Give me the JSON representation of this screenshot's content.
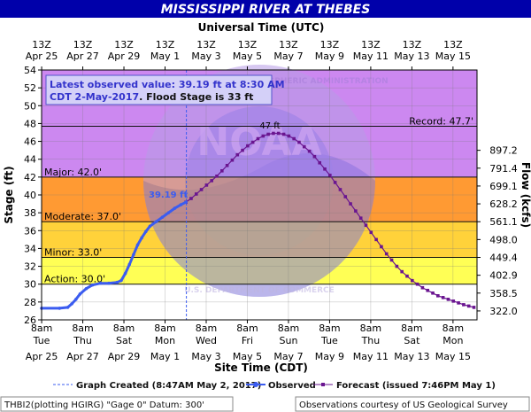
{
  "header": {
    "title": "MISSISSIPPI RIVER AT THEBES",
    "top_axis_title": "Universal Time (UTC)",
    "bottom_axis_title": "Site Time (CDT)",
    "y_left_title": "Stage (ft)",
    "y_right_title": "Flow (kcfs)"
  },
  "colors": {
    "title_bg": "#0000aa",
    "major": "#f55a5a",
    "record": "#cc88f0",
    "moderate": "#ff9a33",
    "minor": "#ffd23a",
    "action": "#ffff55",
    "normal": "#ffffff",
    "observed": "#3b5cf0",
    "forecast": "#6a1590",
    "label_box_bg": "#d4d0f8",
    "label_box_border": "#5555cc"
  },
  "info_box": {
    "line1": "Latest observed value: 39.19 ft at 8:30 AM",
    "line2a": "CDT 2-May-2017",
    "line2b": ". Flood Stage is 33 ft"
  },
  "thresholds": {
    "record": {
      "label": "Record: 47.7'",
      "value": 47.7
    },
    "major": {
      "label": "Major: 42.0'",
      "value": 42.0
    },
    "moderate": {
      "label": "Moderate: 37.0'",
      "value": 37.0
    },
    "minor": {
      "label": "Minor: 33.0'",
      "value": 33.0
    },
    "action": {
      "label": "Action: 30.0'",
      "value": 30.0
    }
  },
  "annotations": {
    "observed_label": "39.19 ft",
    "crest_label": "47 ft"
  },
  "legend": {
    "graph_created": "Graph Created (8:47AM May 2, 2017)",
    "observed": "Observed",
    "forecast": "Forecast (issued 7:46PM May 1)"
  },
  "footer": {
    "left": "THBI2(plotting HGIRG) \"Gage 0\" Datum: 300'",
    "right": "Observations courtesy of US Geological Survey"
  },
  "watermark": {
    "text_top": "NATIONAL OCEANIC AND ATMOSPHERIC ADMINISTRATION",
    "text_bottom": "U.S. DEPARTMENT OF COMMERCE",
    "logo": "NOAA"
  },
  "chart_data": {
    "type": "line",
    "x_unit": "days since Apr 25 2017 00:00 CDT",
    "xlim": [
      0.33,
      21.5
    ],
    "ylim": [
      26,
      54
    ],
    "y_ticks": [
      26,
      28,
      30,
      32,
      34,
      36,
      38,
      40,
      42,
      44,
      46,
      48,
      50,
      52,
      54
    ],
    "flow_ticks": [
      {
        "stage": 27,
        "label": "322.0"
      },
      {
        "stage": 29,
        "label": "358.5"
      },
      {
        "stage": 31,
        "label": "402.9"
      },
      {
        "stage": 33,
        "label": "449.4"
      },
      {
        "stage": 35,
        "label": "498.0"
      },
      {
        "stage": 37,
        "label": "561.1"
      },
      {
        "stage": 39,
        "label": "628.2"
      },
      {
        "stage": 41,
        "label": "699.1"
      },
      {
        "stage": 43,
        "label": "791.4"
      },
      {
        "stage": 45,
        "label": "897.2"
      }
    ],
    "top_ticks": [
      {
        "day": 0.333,
        "line1": "13Z",
        "line2": "Apr 25"
      },
      {
        "day": 2.333,
        "line1": "13Z",
        "line2": "Apr 27"
      },
      {
        "day": 4.333,
        "line1": "13Z",
        "line2": "Apr 29"
      },
      {
        "day": 6.333,
        "line1": "13Z",
        "line2": "May 1"
      },
      {
        "day": 8.333,
        "line1": "13Z",
        "line2": "May 3"
      },
      {
        "day": 10.333,
        "line1": "13Z",
        "line2": "May 5"
      },
      {
        "day": 12.333,
        "line1": "13Z",
        "line2": "May 7"
      },
      {
        "day": 14.333,
        "line1": "13Z",
        "line2": "May 9"
      },
      {
        "day": 16.333,
        "line1": "13Z",
        "line2": "May 11"
      },
      {
        "day": 18.333,
        "line1": "13Z",
        "line2": "May 13"
      },
      {
        "day": 20.333,
        "line1": "13Z",
        "line2": "May 15"
      }
    ],
    "bottom_ticks": [
      {
        "day": 0.333,
        "line1": "8am",
        "line2": "Tue"
      },
      {
        "day": 2.333,
        "line1": "8am",
        "line2": "Thu"
      },
      {
        "day": 4.333,
        "line1": "8am",
        "line2": "Sat"
      },
      {
        "day": 6.333,
        "line1": "8am",
        "line2": "Mon"
      },
      {
        "day": 8.333,
        "line1": "8am",
        "line2": "Wed"
      },
      {
        "day": 10.333,
        "line1": "8am",
        "line2": "Fri"
      },
      {
        "day": 12.333,
        "line1": "8am",
        "line2": "Sun"
      },
      {
        "day": 14.333,
        "line1": "8am",
        "line2": "Tue"
      },
      {
        "day": 16.333,
        "line1": "8am",
        "line2": "Thu"
      },
      {
        "day": 18.333,
        "line1": "8am",
        "line2": "Sat"
      },
      {
        "day": 20.333,
        "line1": "8am",
        "line2": "Mon"
      }
    ],
    "date_labels": [
      {
        "day": 0.333,
        "label": "Apr 25"
      },
      {
        "day": 2.333,
        "label": "Apr 27"
      },
      {
        "day": 4.333,
        "label": "Apr 29"
      },
      {
        "day": 6.333,
        "label": "May 1"
      },
      {
        "day": 8.333,
        "label": "May 3"
      },
      {
        "day": 10.333,
        "label": "May 5"
      },
      {
        "day": 12.333,
        "label": "May 7"
      },
      {
        "day": 14.333,
        "label": "May 9"
      },
      {
        "day": 16.333,
        "label": "May 11"
      },
      {
        "day": 18.333,
        "label": "May 13"
      },
      {
        "day": 20.333,
        "label": "May 15"
      }
    ],
    "graph_created_day": 7.37,
    "series": [
      {
        "name": "Observed",
        "points": [
          [
            0.33,
            27.3
          ],
          [
            1.2,
            27.3
          ],
          [
            1.6,
            27.4
          ],
          [
            1.8,
            27.8
          ],
          [
            2.0,
            28.3
          ],
          [
            2.2,
            28.9
          ],
          [
            2.5,
            29.5
          ],
          [
            2.8,
            29.9
          ],
          [
            3.2,
            30.1
          ],
          [
            3.6,
            30.1
          ],
          [
            4.0,
            30.2
          ],
          [
            4.2,
            30.4
          ],
          [
            4.4,
            31.2
          ],
          [
            4.6,
            32.2
          ],
          [
            4.8,
            33.3
          ],
          [
            5.0,
            34.4
          ],
          [
            5.2,
            35.2
          ],
          [
            5.4,
            35.9
          ],
          [
            5.6,
            36.5
          ],
          [
            5.9,
            37.0
          ],
          [
            6.2,
            37.5
          ],
          [
            6.5,
            38.0
          ],
          [
            6.8,
            38.5
          ],
          [
            7.1,
            38.9
          ],
          [
            7.35,
            39.19
          ]
        ]
      },
      {
        "name": "Forecast",
        "points": [
          [
            7.35,
            39.19
          ],
          [
            7.6,
            39.6
          ],
          [
            7.85,
            40.1
          ],
          [
            8.1,
            40.6
          ],
          [
            8.35,
            41.1
          ],
          [
            8.6,
            41.6
          ],
          [
            8.85,
            42.1
          ],
          [
            9.1,
            42.7
          ],
          [
            9.35,
            43.3
          ],
          [
            9.6,
            43.9
          ],
          [
            9.85,
            44.5
          ],
          [
            10.1,
            45.0
          ],
          [
            10.35,
            45.5
          ],
          [
            10.6,
            45.9
          ],
          [
            10.85,
            46.3
          ],
          [
            11.1,
            46.6
          ],
          [
            11.35,
            46.8
          ],
          [
            11.6,
            46.9
          ],
          [
            11.85,
            46.9
          ],
          [
            12.1,
            46.8
          ],
          [
            12.35,
            46.6
          ],
          [
            12.6,
            46.3
          ],
          [
            12.85,
            45.9
          ],
          [
            13.1,
            45.4
          ],
          [
            13.35,
            44.9
          ],
          [
            13.6,
            44.3
          ],
          [
            13.85,
            43.6
          ],
          [
            14.1,
            42.9
          ],
          [
            14.35,
            42.2
          ],
          [
            14.6,
            41.4
          ],
          [
            14.85,
            40.6
          ],
          [
            15.1,
            39.8
          ],
          [
            15.35,
            39.0
          ],
          [
            15.6,
            38.2
          ],
          [
            15.85,
            37.4
          ],
          [
            16.1,
            36.6
          ],
          [
            16.35,
            35.8
          ],
          [
            16.6,
            35.0
          ],
          [
            16.85,
            34.2
          ],
          [
            17.1,
            33.4
          ],
          [
            17.35,
            32.7
          ],
          [
            17.6,
            32.0
          ],
          [
            17.85,
            31.4
          ],
          [
            18.1,
            30.9
          ],
          [
            18.35,
            30.4
          ],
          [
            18.6,
            30.0
          ],
          [
            18.85,
            29.6
          ],
          [
            19.1,
            29.3
          ],
          [
            19.35,
            29.0
          ],
          [
            19.6,
            28.7
          ],
          [
            19.85,
            28.5
          ],
          [
            20.1,
            28.3
          ],
          [
            20.35,
            28.1
          ],
          [
            20.6,
            27.9
          ],
          [
            20.85,
            27.7
          ],
          [
            21.1,
            27.55
          ],
          [
            21.35,
            27.4
          ]
        ]
      }
    ]
  }
}
